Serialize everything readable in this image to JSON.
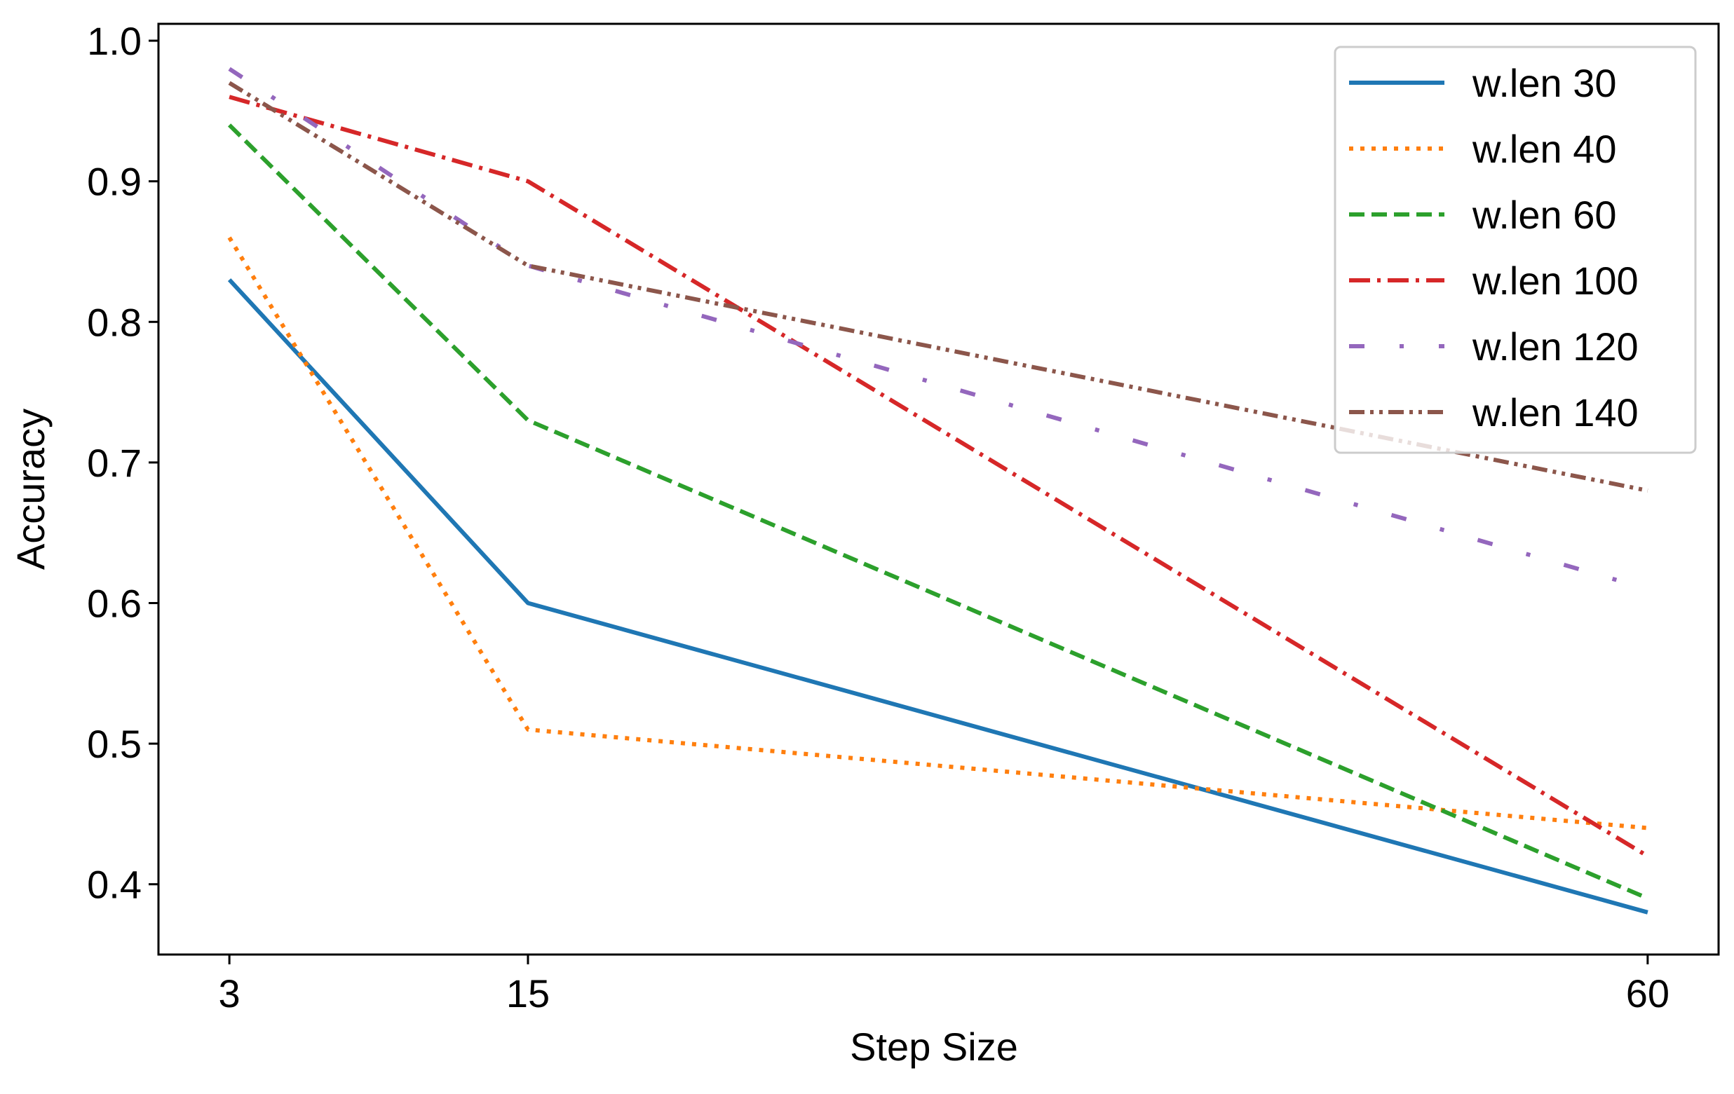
{
  "chart_data": {
    "type": "line",
    "title": "",
    "xlabel": "Step Size",
    "ylabel": "Accuracy",
    "x": [
      3,
      15,
      60
    ],
    "x_tick_labels": [
      "3",
      "15",
      "60"
    ],
    "xlim": [
      0.15,
      62.85
    ],
    "ylim": [
      0.35,
      1.012
    ],
    "y_ticks": [
      0.4,
      0.5,
      0.6,
      0.7,
      0.8,
      0.9,
      1.0
    ],
    "y_tick_labels": [
      "0.4",
      "0.5",
      "0.6",
      "0.7",
      "0.8",
      "0.9",
      "1.0"
    ],
    "grid": false,
    "legend_position": "top-right",
    "series": [
      {
        "name": "w.len 30",
        "values": [
          0.83,
          0.6,
          0.38
        ],
        "color": "#1f77b4",
        "style": "solid"
      },
      {
        "name": "w.len 40",
        "values": [
          0.86,
          0.51,
          0.44
        ],
        "color": "#ff7f0e",
        "style": "dotted"
      },
      {
        "name": "w.len 60",
        "values": [
          0.94,
          0.73,
          0.39
        ],
        "color": "#2ca02c",
        "style": "dashed"
      },
      {
        "name": "w.len 100",
        "values": [
          0.96,
          0.9,
          0.42
        ],
        "color": "#d62728",
        "style": "dashdot"
      },
      {
        "name": "w.len 120",
        "values": [
          0.98,
          0.84,
          0.61
        ],
        "color": "#9467bd",
        "style": "loosedashdot"
      },
      {
        "name": "w.len 140",
        "values": [
          0.97,
          0.84,
          0.68
        ],
        "color": "#8c564b",
        "style": "dashdotdot"
      }
    ]
  }
}
